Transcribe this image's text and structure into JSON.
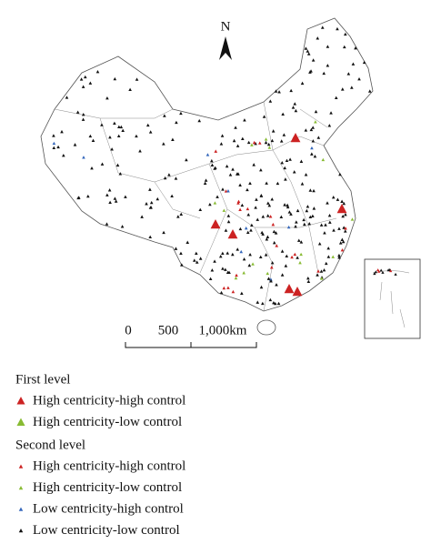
{
  "map": {
    "north_label": "N",
    "scale_bar": {
      "labels": [
        "0",
        "500",
        "1,000km"
      ]
    },
    "legend": [
      {
        "heading": "First level",
        "items": [
          {
            "label": "High centricity-high control",
            "color": "#cc2222",
            "size": "large"
          },
          {
            "label": "High centricity-low control",
            "color": "#88bb33",
            "size": "large"
          }
        ]
      },
      {
        "heading": "Second level",
        "items": [
          {
            "label": "High centricity-high control",
            "color": "#cc2222",
            "size": "small"
          },
          {
            "label": "High centricity-low control",
            "color": "#88bb33",
            "size": "small"
          },
          {
            "label": "Low centricity-high control",
            "color": "#3366bb",
            "size": "small"
          },
          {
            "label": "Low centricity-low control",
            "color": "#111111",
            "size": "small"
          }
        ]
      }
    ]
  }
}
